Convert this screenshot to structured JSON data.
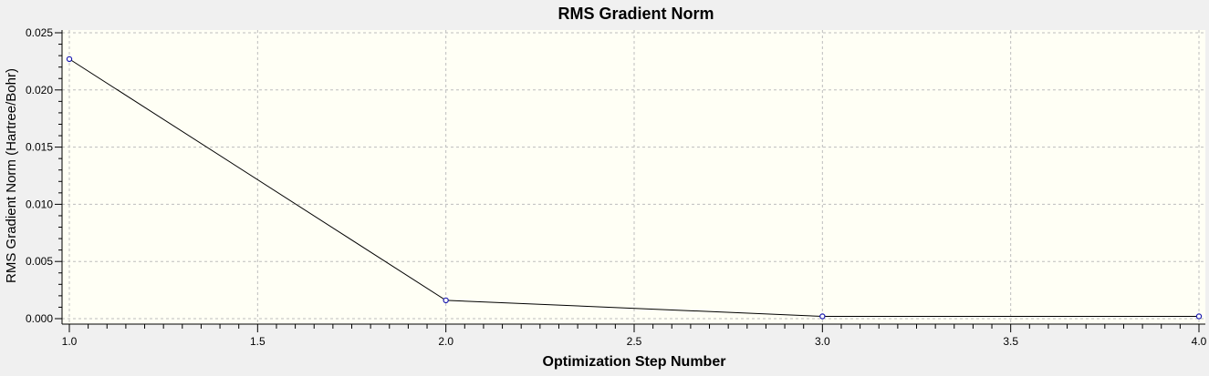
{
  "chart_data": {
    "type": "line",
    "title": "RMS Gradient Norm",
    "xlabel": "Optimization Step Number",
    "ylabel": "RMS Gradient Norm (Hartree/Bohr)",
    "xlim": [
      1.0,
      4.0
    ],
    "ylim": [
      0.0,
      0.025
    ],
    "x_ticks": [
      "1.0",
      "1.5",
      "2.0",
      "2.5",
      "3.0",
      "3.5",
      "4.0"
    ],
    "y_ticks": [
      "0.000",
      "0.005",
      "0.010",
      "0.015",
      "0.020",
      "0.025"
    ],
    "grid": true,
    "series": [
      {
        "x": [
          1,
          2,
          3,
          4
        ],
        "y": [
          0.0227,
          0.0016,
          0.0002,
          0.0002
        ]
      }
    ]
  },
  "colors": {
    "background": "#f0f0f0",
    "plot_background": "#fffff5",
    "grid": "#bdbdbd",
    "line": "#000000",
    "marker_stroke": "#1a1ab0",
    "marker_fill": "#ffffff",
    "text": "#000000"
  }
}
